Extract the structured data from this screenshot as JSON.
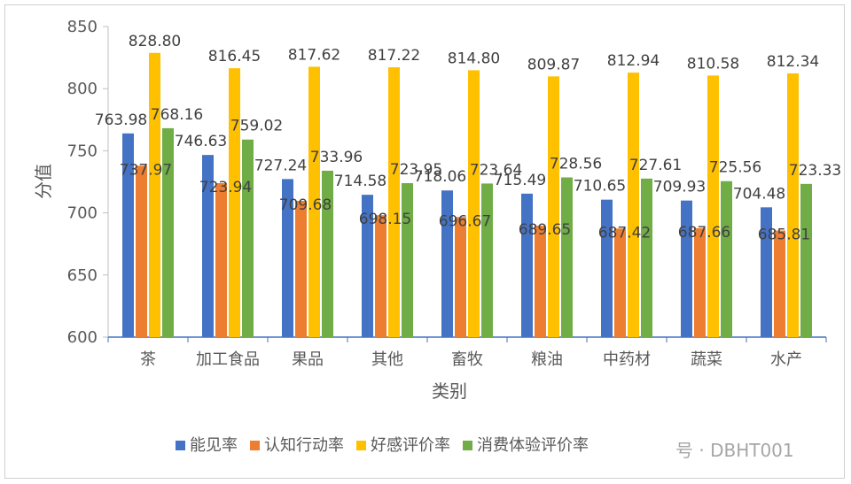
{
  "chart_data": {
    "type": "bar",
    "title": "",
    "xlabel": "类别",
    "ylabel": "分值",
    "ylim": [
      600,
      850
    ],
    "yticks": [
      600,
      650,
      700,
      750,
      800,
      850
    ],
    "grid": false,
    "legend_position": "bottom",
    "categories": [
      "茶",
      "加工食品",
      "果品",
      "其他",
      "畜牧",
      "粮油",
      "中药材",
      "蔬菜",
      "水产"
    ],
    "series": [
      {
        "name": "能见率",
        "color": "#4472C4",
        "values": [
          763.98,
          746.63,
          727.24,
          714.58,
          718.06,
          715.49,
          710.65,
          709.93,
          704.48
        ]
      },
      {
        "name": "认知行动率",
        "color": "#ED7D31",
        "values": [
          737.97,
          723.94,
          709.68,
          698.15,
          696.67,
          689.65,
          687.42,
          687.66,
          685.81
        ]
      },
      {
        "name": "好感评价率",
        "color": "#FFC000",
        "values": [
          828.8,
          816.45,
          817.62,
          817.22,
          814.8,
          809.87,
          812.94,
          810.58,
          812.34
        ]
      },
      {
        "name": "消费体验评价率",
        "color": "#70AD47",
        "values": [
          768.16,
          759.02,
          733.96,
          723.95,
          723.64,
          728.56,
          727.61,
          725.56,
          723.33
        ]
      }
    ]
  },
  "watermark": "号 · DBHT001"
}
